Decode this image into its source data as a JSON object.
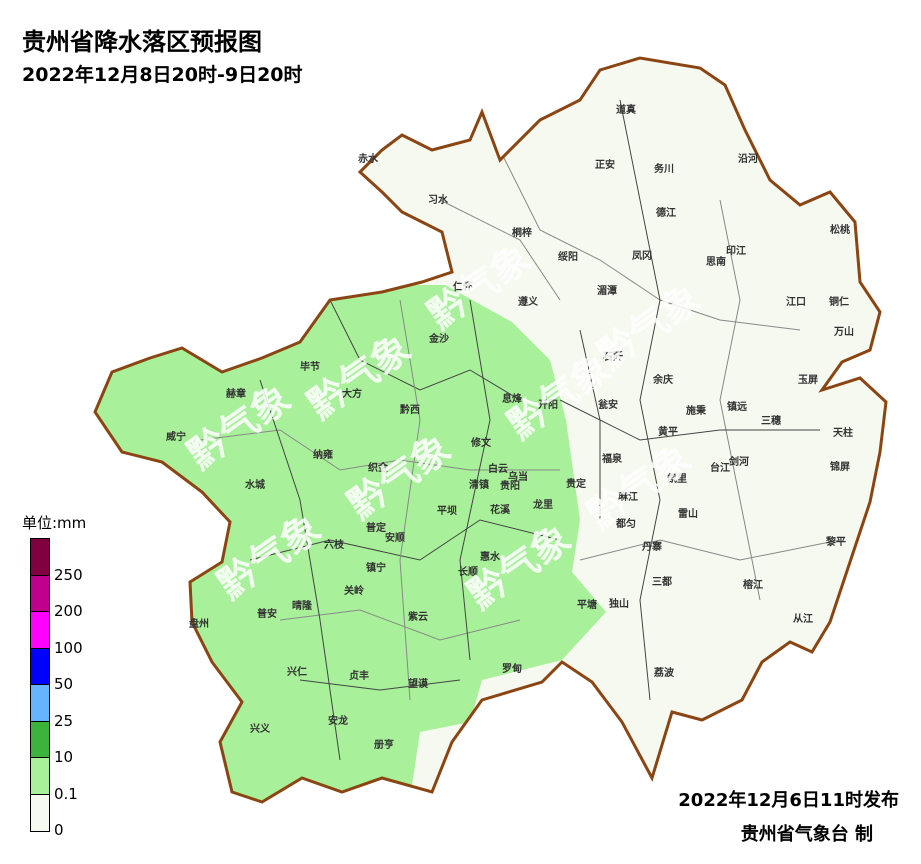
{
  "title": "贵州省降水落区预报图",
  "subtitle": "2022年12月8日20时-9日20时",
  "issue_time": "2022年12月6日11时发布",
  "issuer": "贵州省气象台 制",
  "watermark": "黔气象",
  "legend": {
    "unit": "单位:mm",
    "colors": [
      "#800040",
      "#c0008c",
      "#ff00ff",
      "#0000ff",
      "#66b3ff",
      "#3cb43c",
      "#a8f09a",
      "#f6f9f0"
    ],
    "labels": [
      "250",
      "200",
      "100",
      "50",
      "25",
      "10",
      "0.1",
      "0"
    ]
  },
  "colors": {
    "border": "#8b4513",
    "no_rain": "#f6f9f0",
    "light_rain": "#a8f09a"
  },
  "counties": [
    "赤水",
    "习水",
    "桐梓",
    "绥阳",
    "道真",
    "正安",
    "务川",
    "沿河",
    "德江",
    "印江",
    "思南",
    "松桃",
    "凤冈",
    "湄潭",
    "仁怀",
    "遵义",
    "金沙",
    "毕节",
    "赫章",
    "大方",
    "黔西",
    "威宁",
    "纳雍",
    "织金",
    "水城",
    "六枝",
    "普定",
    "安顺",
    "镇宁",
    "关岭",
    "晴隆",
    "普安",
    "盘州",
    "兴仁",
    "贞丰",
    "兴义",
    "安龙",
    "册亨",
    "望谟",
    "紫云",
    "长顺",
    "惠水",
    "平坝",
    "清镇",
    "修文",
    "息烽",
    "开阳",
    "白云",
    "乌当",
    "贵阳",
    "花溪",
    "龙里",
    "贵定",
    "瓮安",
    "余庆",
    "福泉",
    "黄平",
    "施秉",
    "镇远",
    "三穗",
    "天柱",
    "锦屏",
    "黎平",
    "从江",
    "榕江",
    "剑河",
    "台江",
    "雷山",
    "丹寨",
    "三都",
    "独山",
    "平塘",
    "罗甸",
    "荔波",
    "麻江",
    "都匀",
    "凯里",
    "江口",
    "铜仁",
    "万山",
    "玉屏",
    "石阡"
  ]
}
